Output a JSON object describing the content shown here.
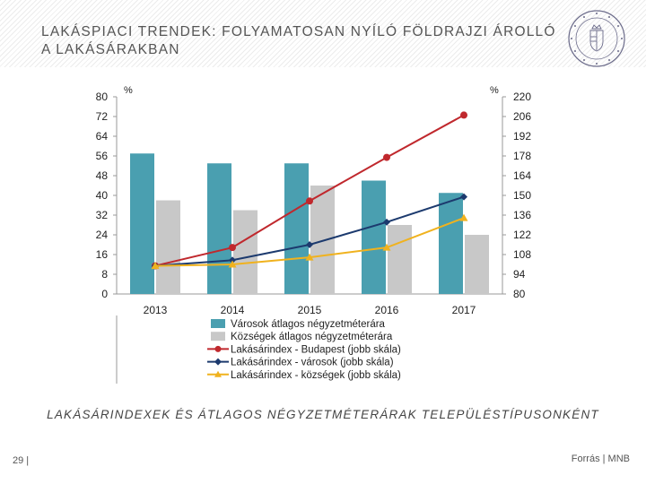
{
  "slide": {
    "title_line1": "LAKÁSPIACI TRENDEK: FOLYAMATOSAN NYÍLÓ FÖLDRAJZI ÁROLLÓ",
    "title_line2": "A LAKÁSÁRAKBAN",
    "subtitle": "LAKÁSÁRINDEXEK ÉS ÁTLAGOS NÉGYZETMÉTERÁRAK TELEPÜLÉSTÍPUSONKÉNT",
    "page_number": "29 |",
    "source": "Forrás | MNB",
    "logo_icon": "mnb-seal-icon"
  },
  "chart_data": {
    "type": "bar",
    "categories": [
      "2013",
      "2014",
      "2015",
      "2016",
      "2017"
    ],
    "left_axis": {
      "unit": "%",
      "ylim": [
        0,
        80
      ],
      "ticks": [
        "0",
        "8",
        "16",
        "24",
        "32",
        "40",
        "48",
        "56",
        "64",
        "72",
        "80"
      ]
    },
    "right_axis": {
      "unit": "%",
      "ylim": [
        80,
        220
      ],
      "ticks": [
        "80",
        "94",
        "108",
        "122",
        "136",
        "150",
        "164",
        "178",
        "192",
        "206",
        "220"
      ]
    },
    "series": [
      {
        "name": "Városok átlagos négyzetméterára",
        "kind": "bar",
        "axis": "left",
        "color": "#4a9fb0",
        "values": [
          57,
          53,
          53,
          46,
          41
        ]
      },
      {
        "name": "Községek átlagos négyzetméterára",
        "kind": "bar",
        "axis": "left",
        "color": "#c8c8c8",
        "values": [
          38,
          34,
          44,
          28,
          24
        ]
      },
      {
        "name": "Lakásárindex - Budapest (jobb skála)",
        "kind": "line",
        "axis": "right",
        "color": "#c0282d",
        "marker": "circle",
        "values": [
          100,
          113,
          146,
          177,
          207
        ]
      },
      {
        "name": "Lakásárindex - városok (jobb skála)",
        "kind": "line",
        "axis": "right",
        "color": "#1c3a6e",
        "marker": "diamond",
        "values": [
          100,
          104,
          115,
          131,
          149
        ]
      },
      {
        "name": "Lakásárindex - községek (jobb skála)",
        "kind": "line",
        "axis": "right",
        "color": "#f0b21e",
        "marker": "triangle",
        "values": [
          100,
          101,
          106,
          113,
          134
        ]
      }
    ],
    "grid": false,
    "legend_position": "bottom-center"
  }
}
